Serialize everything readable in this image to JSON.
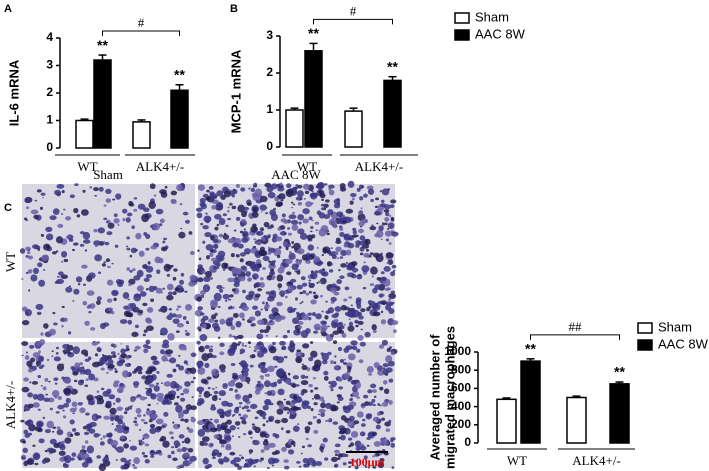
{
  "chart_data": [
    {
      "type": "bar",
      "panel": "A",
      "ylabel": [
        "IL-6 mRNA"
      ],
      "categories": [
        "WT",
        "ALK4+/-"
      ],
      "series": [
        {
          "name": "Sham",
          "color": "#ffffff",
          "values": [
            1.0,
            0.95
          ],
          "errors": [
            0.05,
            0.07
          ],
          "significance": [
            null,
            null
          ]
        },
        {
          "name": "AAC 8W",
          "color": "#000000",
          "values": [
            3.2,
            2.1
          ],
          "errors": [
            0.18,
            0.2
          ],
          "significance": [
            "**",
            "**"
          ]
        }
      ],
      "comparison": "#",
      "ylim": [
        0,
        4
      ],
      "yticks": [
        0,
        1,
        2,
        3,
        4
      ],
      "legend": false
    },
    {
      "type": "bar",
      "panel": "B",
      "ylabel": [
        "MCP-1 mRNA"
      ],
      "categories": [
        "WT",
        "ALK4+/-"
      ],
      "series": [
        {
          "name": "Sham",
          "color": "#ffffff",
          "values": [
            1.0,
            0.97
          ],
          "errors": [
            0.05,
            0.08
          ],
          "significance": [
            null,
            null
          ]
        },
        {
          "name": "AAC 8W",
          "color": "#000000",
          "values": [
            2.6,
            1.8
          ],
          "errors": [
            0.2,
            0.1
          ],
          "significance": [
            "**",
            "**"
          ]
        }
      ],
      "comparison": "#",
      "ylim": [
        0,
        3
      ],
      "yticks": [
        0,
        1,
        2,
        3
      ],
      "legend": true
    },
    {
      "type": "bar",
      "ylabel": [
        "Averaged number of",
        "migrated macrophages"
      ],
      "categories": [
        "WT",
        "ALK4+/-"
      ],
      "series": [
        {
          "name": "Sham",
          "color": "#ffffff",
          "values": [
            480,
            500
          ],
          "errors": [
            15,
            15
          ],
          "significance": [
            null,
            null
          ]
        },
        {
          "name": "AAC 8W",
          "color": "#000000",
          "values": [
            900,
            650
          ],
          "errors": [
            25,
            20
          ],
          "significance": [
            "**",
            "**"
          ]
        }
      ],
      "comparison": "##",
      "ylim": [
        0,
        1000
      ],
      "yticks": [
        0,
        200,
        400,
        600,
        800,
        1000
      ],
      "legend": true
    }
  ],
  "images": {
    "panel": "C",
    "columns": [
      "Sham",
      "AAC 8W"
    ],
    "rows": [
      "WT",
      "ALK4+/-"
    ],
    "scale_bar": "100μm"
  }
}
